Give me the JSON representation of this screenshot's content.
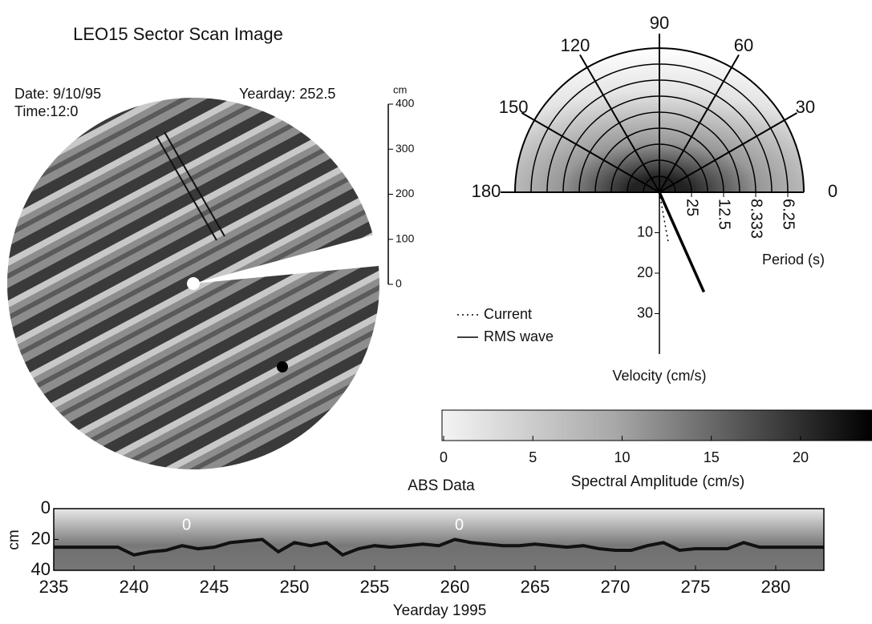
{
  "sector_scan": {
    "title": "LEO15 Sector Scan Image",
    "date": "Date: 9/10/95",
    "time": "Time:12:0",
    "yearday": "Yearday: 252.5",
    "scale_unit": "cm",
    "scale_lim": [
      0,
      400
    ],
    "scale_ticks": [
      0,
      100,
      200,
      300,
      400
    ]
  },
  "polar": {
    "direction_ticks": [
      0,
      30,
      60,
      90,
      120,
      150,
      180
    ],
    "period_ticks": [
      25,
      12.5,
      8.333,
      6.25
    ],
    "period_label": "Period (s)",
    "velocity_lim": [
      0,
      40
    ],
    "velocity_ticks": [
      10,
      20,
      30
    ],
    "velocity_label": "Velocity (cm/s)",
    "vectors": [
      {
        "name": "Current",
        "style": "dotted",
        "speed": 13,
        "direction": -80
      },
      {
        "name": "RMS wave",
        "style": "solid",
        "speed": 27,
        "direction": -66
      }
    ]
  },
  "colorbar": {
    "label": "Spectral Amplitude (cm/s)",
    "lim": [
      0,
      24
    ],
    "ticks": [
      0,
      5,
      10,
      15,
      20
    ]
  },
  "abs": {
    "title": "ABS Data",
    "y_label": "cm",
    "x_label": "Yearday 1995",
    "xlim": [
      235,
      283
    ],
    "xticks": [
      235,
      240,
      245,
      250,
      255,
      260,
      265,
      270,
      275,
      280
    ],
    "ylim": [
      0,
      40
    ],
    "yticks": [
      0,
      20,
      40
    ],
    "x": [
      235,
      236,
      237,
      238,
      239,
      240,
      241,
      242,
      243,
      244,
      245,
      246,
      247,
      248,
      249,
      250,
      251,
      252,
      253,
      254,
      255,
      256,
      257,
      258,
      259,
      260,
      261,
      262,
      263,
      264,
      265,
      266,
      267,
      268,
      269,
      270,
      271,
      272,
      273,
      274,
      275,
      276,
      277,
      278,
      279,
      280,
      281,
      282,
      283
    ],
    "bed_level": [
      25,
      25,
      25,
      25,
      25,
      30,
      28,
      27,
      24,
      26,
      25,
      22,
      21,
      20,
      28,
      22,
      24,
      22,
      30,
      26,
      24,
      25,
      24,
      23,
      24,
      20,
      22,
      23,
      24,
      24,
      23,
      24,
      25,
      24,
      26,
      27,
      27,
      24,
      22,
      27,
      26,
      26,
      26,
      22,
      25,
      25,
      25,
      25,
      25
    ],
    "markers": [
      {
        "label": "0",
        "x": 243
      },
      {
        "label": "0",
        "x": 260
      }
    ]
  }
}
